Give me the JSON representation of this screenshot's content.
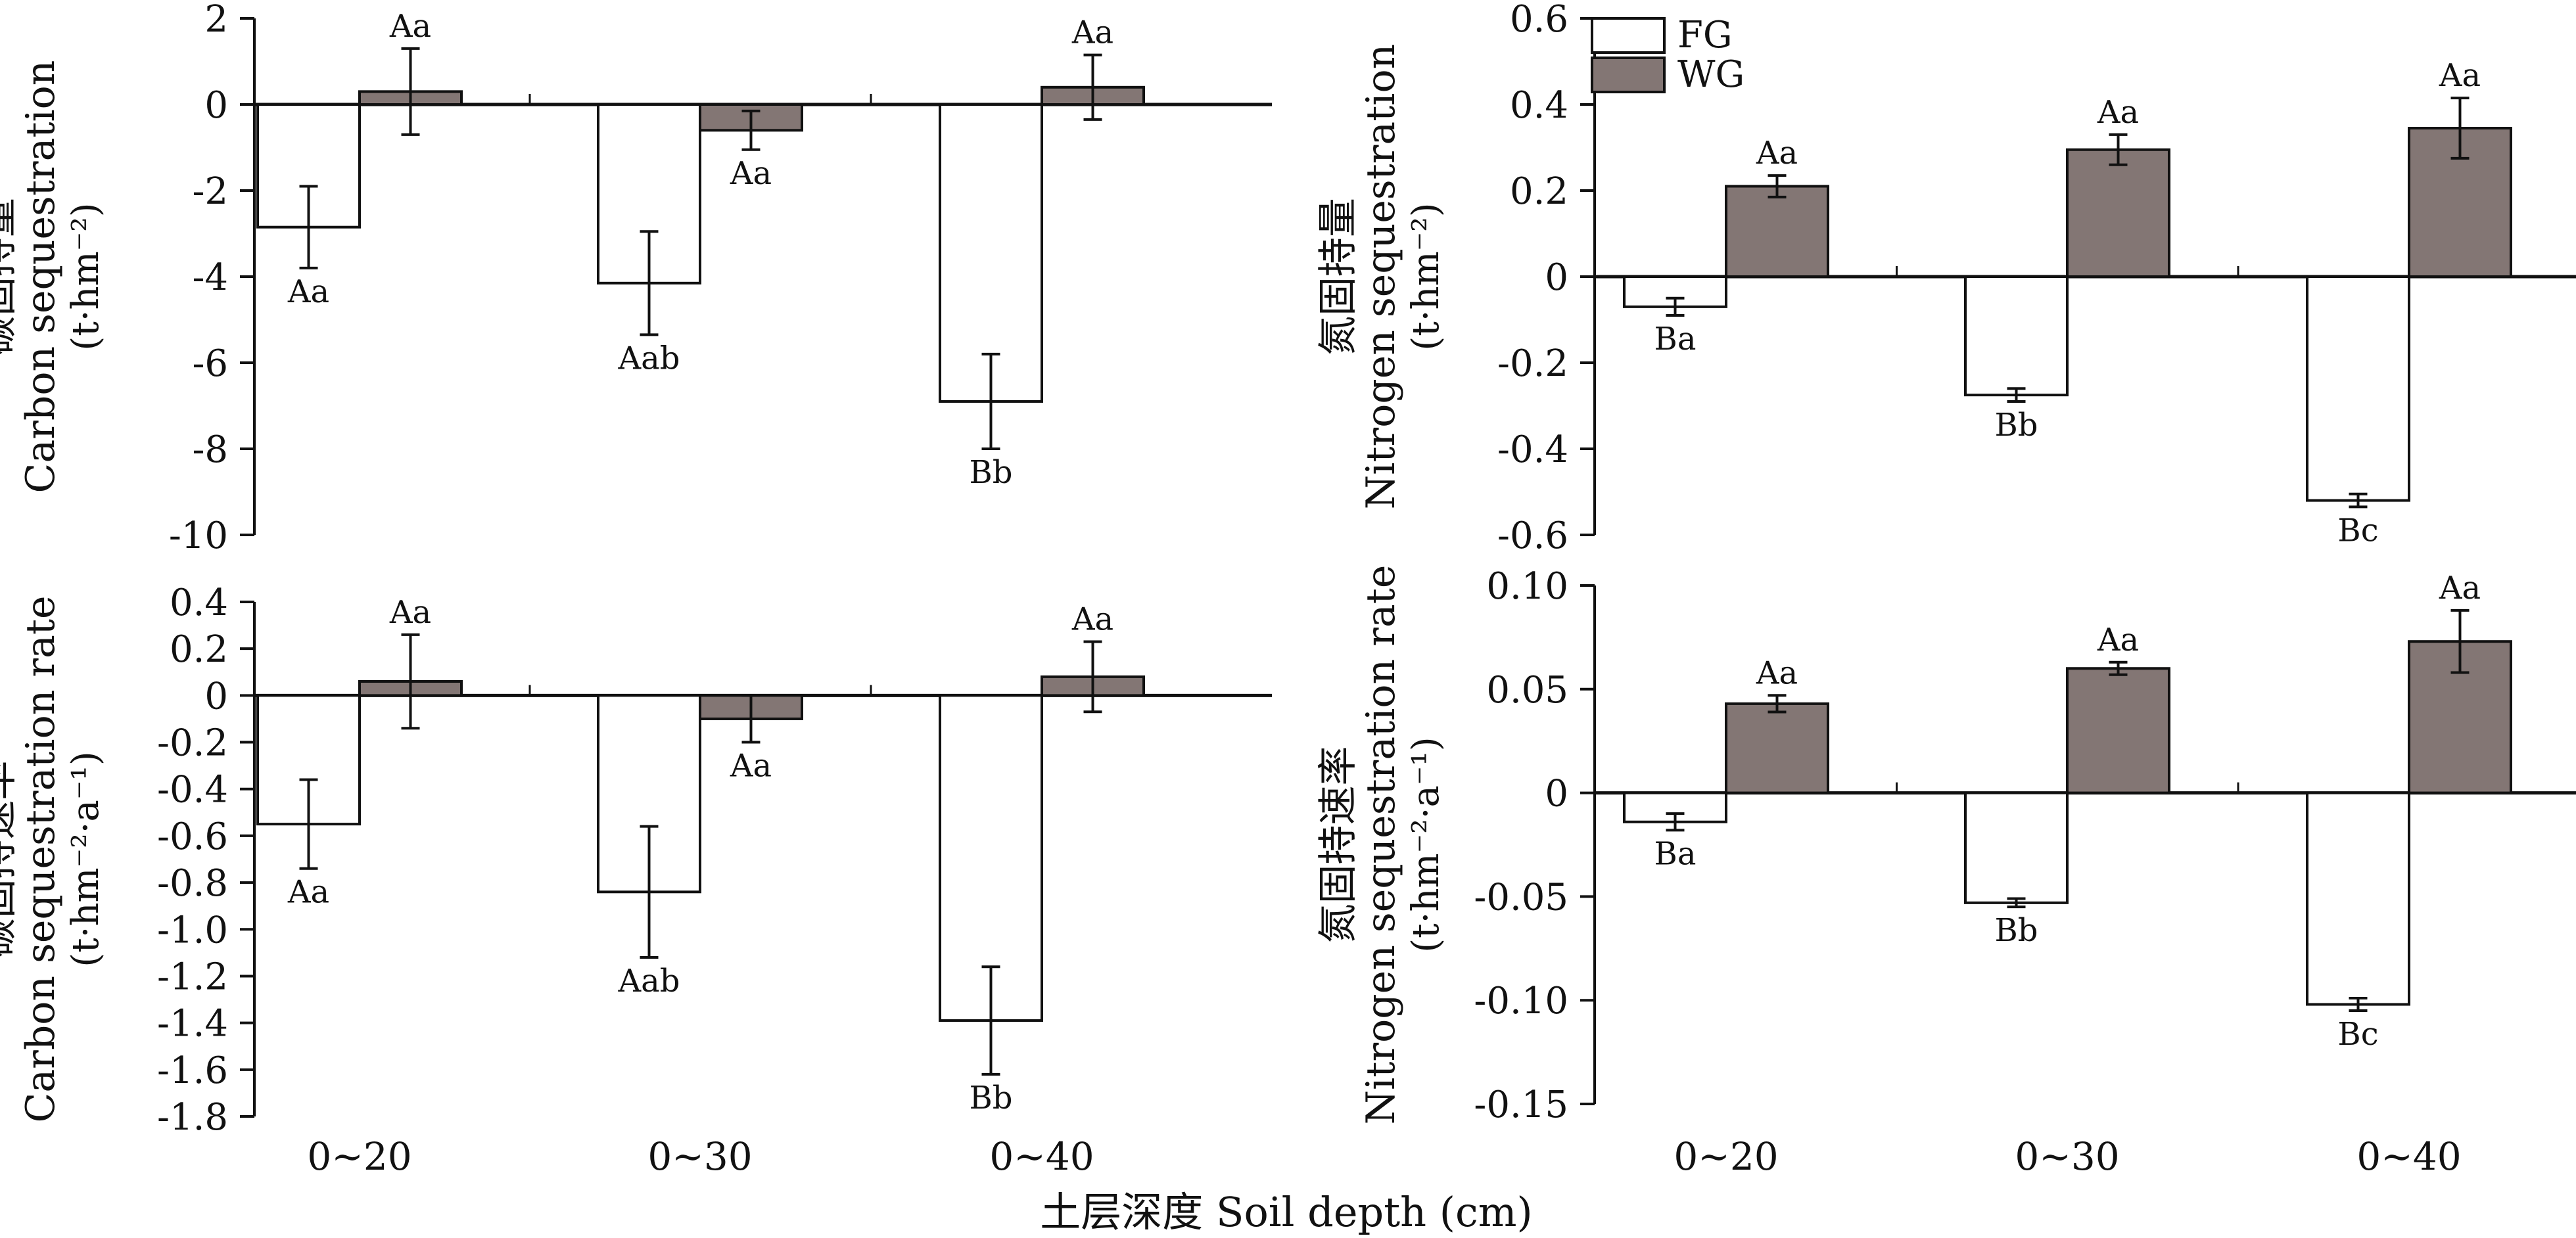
{
  "x_axis_title": "土层深度 Soil depth (cm)",
  "legend": {
    "items": [
      {
        "name": "FG",
        "color": "#ffffff"
      },
      {
        "name": "WG",
        "color": "#837674"
      }
    ]
  },
  "chart_data": [
    {
      "type": "bar",
      "panel": "top-left",
      "ylabel_cn": "碳固持量",
      "ylabel_en": "Carbon sequestration",
      "ylabel_unit": "(t·hm⁻²)",
      "ylim": [
        -10,
        2
      ],
      "yticks": [
        2,
        0,
        -2,
        -4,
        -6,
        -8,
        -10
      ],
      "ytick_labels": [
        "2",
        "0",
        "-2",
        "-4",
        "-6",
        "-8",
        "-10"
      ],
      "categories": [
        "0~20",
        "0~30",
        "0~40"
      ],
      "show_xtick_labels": false,
      "series": [
        {
          "name": "FG",
          "values": [
            -2.85,
            -4.15,
            -6.9
          ],
          "errors": [
            0.95,
            1.2,
            1.1
          ],
          "labels": [
            "Aa",
            "Aab",
            "Bb"
          ]
        },
        {
          "name": "WG",
          "values": [
            0.3,
            -0.6,
            0.4
          ],
          "errors": [
            1.0,
            0.45,
            0.75
          ],
          "labels": [
            "Aa",
            "Aa",
            "Aa"
          ]
        }
      ]
    },
    {
      "type": "bar",
      "panel": "top-right",
      "ylabel_cn": "氮固持量",
      "ylabel_en": "Nitrogen sequestration",
      "ylabel_unit": "(t·hm⁻²)",
      "ylim": [
        -0.6,
        0.6
      ],
      "yticks": [
        0.6,
        0.4,
        0.2,
        0,
        -0.2,
        -0.4,
        -0.6
      ],
      "ytick_labels": [
        "0.6",
        "0.4",
        "0.2",
        "0",
        "-0.2",
        "-0.4",
        "-0.6"
      ],
      "categories": [
        "0~20",
        "0~30",
        "0~40"
      ],
      "show_xtick_labels": false,
      "series": [
        {
          "name": "FG",
          "values": [
            -0.07,
            -0.275,
            -0.52
          ],
          "errors": [
            0.02,
            0.015,
            0.015
          ],
          "labels": [
            "Ba",
            "Bb",
            "Bc"
          ]
        },
        {
          "name": "WG",
          "values": [
            0.21,
            0.295,
            0.345
          ],
          "errors": [
            0.025,
            0.035,
            0.07
          ],
          "labels": [
            "Aa",
            "Aa",
            "Aa"
          ]
        }
      ]
    },
    {
      "type": "bar",
      "panel": "bottom-left",
      "ylabel_cn": "碳固持速率",
      "ylabel_en": "Carbon sequestration rate",
      "ylabel_unit": "(t·hm⁻²·a⁻¹)",
      "ylim": [
        -1.8,
        0.4
      ],
      "yticks": [
        0.4,
        0.2,
        0,
        -0.2,
        -0.4,
        -0.6,
        -0.8,
        -1.0,
        -1.2,
        -1.4,
        -1.6,
        -1.8
      ],
      "ytick_labels": [
        "0.4",
        "0.2",
        "0",
        "-0.2",
        "-0.4",
        "-0.6",
        "-0.8",
        "-1.0",
        "-1.2",
        "-1.4",
        "-1.6",
        "-1.8"
      ],
      "categories": [
        "0~20",
        "0~30",
        "0~40"
      ],
      "show_xtick_labels": true,
      "series": [
        {
          "name": "FG",
          "values": [
            -0.55,
            -0.84,
            -1.39
          ],
          "errors": [
            0.19,
            0.28,
            0.23
          ],
          "labels": [
            "Aa",
            "Aab",
            "Bb"
          ]
        },
        {
          "name": "WG",
          "values": [
            0.06,
            -0.1,
            0.08
          ],
          "errors": [
            0.2,
            0.1,
            0.15
          ],
          "labels": [
            "Aa",
            "Aa",
            "Aa"
          ]
        }
      ]
    },
    {
      "type": "bar",
      "panel": "bottom-right",
      "ylabel_cn": "氮固持速率",
      "ylabel_en": "Nitrogen sequestration rate",
      "ylabel_unit": "(t·hm⁻²·a⁻¹)",
      "ylim": [
        -0.15,
        0.1
      ],
      "yticks": [
        0.1,
        0.05,
        0,
        -0.05,
        -0.1,
        -0.15
      ],
      "ytick_labels": [
        "0.10",
        "0.05",
        "0",
        "-0.05",
        "-0.10",
        "-0.15"
      ],
      "categories": [
        "0~20",
        "0~30",
        "0~40"
      ],
      "show_xtick_labels": true,
      "series": [
        {
          "name": "FG",
          "values": [
            -0.014,
            -0.053,
            -0.102
          ],
          "errors": [
            0.004,
            0.002,
            0.003
          ],
          "labels": [
            "Ba",
            "Bb",
            "Bc"
          ]
        },
        {
          "name": "WG",
          "values": [
            0.043,
            0.06,
            0.073
          ],
          "errors": [
            0.004,
            0.003,
            0.015
          ],
          "labels": [
            "Aa",
            "Aa",
            "Aa"
          ]
        }
      ]
    }
  ]
}
